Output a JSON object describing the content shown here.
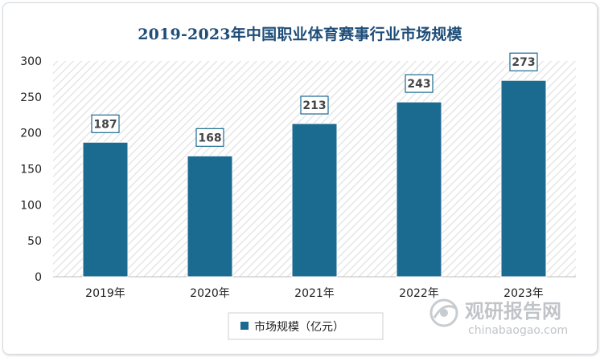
{
  "chart_data": {
    "type": "bar",
    "title": "2019-2023年中国职业体育赛事行业市场规模",
    "categories": [
      "2019年",
      "2020年",
      "2021年",
      "2022年",
      "2023年"
    ],
    "series": [
      {
        "name": "市场规模（亿元）",
        "values": [
          187,
          168,
          213,
          243,
          273
        ]
      }
    ],
    "data_labels": [
      "187",
      "168",
      "213",
      "243",
      "273"
    ],
    "y_ticks": [
      "0",
      "50",
      "100",
      "150",
      "200",
      "250",
      "300"
    ],
    "ylim": [
      0,
      300
    ],
    "xlabel": "",
    "ylabel": "",
    "legend_position": "bottom-center",
    "grid": false
  },
  "colors": {
    "bar": "#1b6a90",
    "title": "#1f4e79",
    "plot_hatch": "#e4e4e4"
  },
  "watermark": {
    "name": "观研报告网",
    "url": "chinabaogao.com",
    "icon": "logo-icon"
  }
}
